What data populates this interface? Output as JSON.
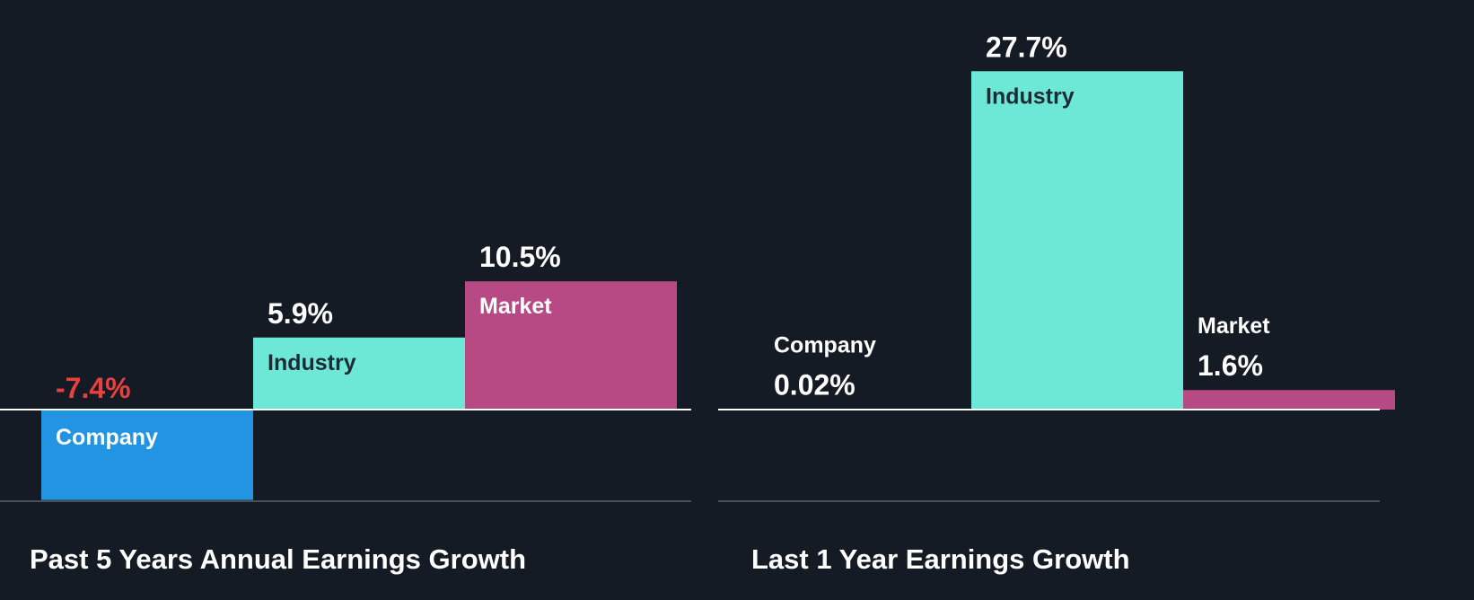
{
  "colors": {
    "background": "#151b24",
    "company": "#2394e1",
    "industry": "#6ee8d6",
    "market": "#b74a85",
    "negative_label": "#e83f3f",
    "label_on_light": "#1d2b34",
    "label_on_dark": "#ffffff",
    "baseline": "#ffffff",
    "floor_line": "#4a5059"
  },
  "chart_data": [
    {
      "type": "bar",
      "title": "Past 5 Years Annual Earnings Growth",
      "unit": "%",
      "categories": [
        "Company",
        "Industry",
        "Market"
      ],
      "values": [
        -7.4,
        5.9,
        10.5
      ],
      "value_labels": [
        "-7.4%",
        "5.9%",
        "10.5%"
      ],
      "ylim": [
        -7.4,
        10.5
      ]
    },
    {
      "type": "bar",
      "title": "Last 1 Year Earnings Growth",
      "unit": "%",
      "categories": [
        "Company",
        "Industry",
        "Market"
      ],
      "values": [
        0.02,
        27.7,
        1.6
      ],
      "value_labels": [
        "0.02%",
        "27.7%",
        "1.6%"
      ],
      "ylim": [
        -7.4,
        27.7
      ]
    }
  ]
}
